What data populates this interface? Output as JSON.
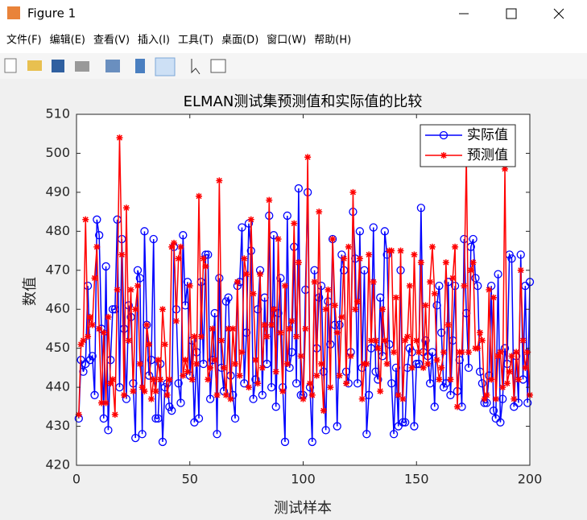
{
  "window": {
    "title": "Figure 1",
    "menu": [
      "文件(F)",
      "编辑(E)",
      "查看(V)",
      "插入(I)",
      "工具(T)",
      "桌面(D)",
      "窗口(W)",
      "帮助(H)"
    ]
  },
  "chart_data": {
    "type": "line",
    "title": "ELMAN测试集预测值和实际值的比较",
    "xlabel": "测试样本",
    "ylabel": "数值",
    "x": [
      1,
      2,
      3,
      4,
      5,
      6,
      7,
      8,
      9,
      10,
      11,
      12,
      13,
      14,
      15,
      16,
      17,
      18,
      19,
      20,
      21,
      22,
      23,
      24,
      25,
      26,
      27,
      28,
      29,
      30,
      31,
      32,
      33,
      34,
      35,
      36,
      37,
      38,
      39,
      40,
      41,
      42,
      43,
      44,
      45,
      46,
      47,
      48,
      49,
      50,
      51,
      52,
      53,
      54,
      55,
      56,
      57,
      58,
      59,
      60,
      61,
      62,
      63,
      64,
      65,
      66,
      67,
      68,
      69,
      70,
      71,
      72,
      73,
      74,
      75,
      76,
      77,
      78,
      79,
      80,
      81,
      82,
      83,
      84,
      85,
      86,
      87,
      88,
      89,
      90,
      91,
      92,
      93,
      94,
      95,
      96,
      97,
      98,
      99,
      100,
      101,
      102,
      103,
      104,
      105,
      106,
      107,
      108,
      109,
      110,
      111,
      112,
      113,
      114,
      115,
      116,
      117,
      118,
      119,
      120,
      121,
      122,
      123,
      124,
      125,
      126,
      127,
      128,
      129,
      130,
      131,
      132,
      133,
      134,
      135,
      136,
      137,
      138,
      139,
      140,
      141,
      142,
      143,
      144,
      145,
      146,
      147,
      148,
      149,
      150,
      151,
      152,
      153,
      154,
      155,
      156,
      157,
      158,
      159,
      160,
      161,
      162,
      163,
      164,
      165,
      166,
      167,
      168,
      169,
      170,
      171,
      172,
      173,
      174,
      175,
      176,
      177,
      178,
      179,
      180,
      181,
      182,
      183,
      184,
      185,
      186,
      187,
      188,
      189,
      190,
      191,
      192,
      193,
      194,
      195,
      196,
      197,
      198,
      199,
      200
    ],
    "series": [
      {
        "name": "实际值",
        "color": "#0000ff",
        "marker": "circle",
        "values": [
          432,
          447,
          444,
          446,
          466,
          447,
          448,
          438,
          483,
          479,
          455,
          432,
          471,
          429,
          447,
          460,
          460,
          483,
          440,
          478,
          455,
          437,
          461,
          458,
          441,
          427,
          470,
          468,
          428,
          480,
          456,
          443,
          447,
          478,
          432,
          432,
          446,
          426,
          440,
          441,
          435,
          434,
          476,
          460,
          441,
          436,
          479,
          461,
          467,
          443,
          452,
          431,
          449,
          432,
          467,
          446,
          474,
          474,
          437,
          447,
          459,
          428,
          468,
          445,
          439,
          462,
          463,
          443,
          438,
          432,
          466,
          467,
          481,
          441,
          454,
          482,
          475,
          437,
          442,
          460,
          470,
          438,
          463,
          446,
          484,
          440,
          479,
          435,
          459,
          468,
          440,
          426,
          484,
          445,
          449,
          476,
          441,
          491,
          438,
          438,
          465,
          490,
          440,
          426,
          470,
          450,
          463,
          466,
          444,
          429,
          462,
          451,
          478,
          456,
          430,
          456,
          474,
          470,
          444,
          441,
          449,
          485,
          473,
          441,
          480,
          445,
          470,
          428,
          438,
          450,
          481,
          444,
          442,
          463,
          448,
          480,
          474,
          451,
          441,
          428,
          445,
          430,
          470,
          431,
          431,
          445,
          450,
          449,
          430,
          446,
          446,
          486,
          449,
          452,
          448,
          441,
          449,
          435,
          461,
          466,
          454,
          440,
          441,
          467,
          438,
          452,
          466,
          439,
          447,
          435,
          478,
          459,
          445,
          476,
          478,
          468,
          466,
          444,
          441,
          436,
          436,
          443,
          466,
          434,
          432,
          469,
          431,
          437,
          450,
          446,
          474,
          473,
          435,
          448,
          436,
          474,
          442,
          466,
          436,
          467
        ]
      },
      {
        "name": "预测值",
        "color": "#ff0000",
        "marker": "asterisk",
        "values": [
          433,
          451,
          452,
          483,
          453,
          458,
          456,
          468,
          476,
          455,
          436,
          454,
          436,
          458,
          441,
          442,
          433,
          465,
          504,
          474,
          438,
          486,
          452,
          465,
          439,
          460,
          466,
          446,
          440,
          439,
          456,
          451,
          437,
          442,
          439,
          447,
          442,
          460,
          451,
          438,
          442,
          476,
          477,
          457,
          473,
          476,
          443,
          447,
          444,
          466,
          442,
          453,
          446,
          489,
          453,
          473,
          471,
          442,
          445,
          455,
          447,
          438,
          493,
          452,
          445,
          438,
          455,
          437,
          455,
          446,
          467,
          443,
          449,
          473,
          469,
          440,
          483,
          464,
          447,
          441,
          469,
          445,
          456,
          453,
          488,
          456,
          460,
          444,
          478,
          454,
          439,
          466,
          446,
          455,
          457,
          482,
          453,
          472,
          448,
          437,
          455,
          499,
          441,
          438,
          467,
          443,
          485,
          446,
          434,
          460,
          465,
          440,
          478,
          461,
          454,
          443,
          458,
          473,
          441,
          476,
          448,
          490,
          460,
          462,
          473,
          437,
          446,
          446,
          474,
          452,
          467,
          452,
          450,
          439,
          460,
          452,
          446,
          475,
          475,
          449,
          463,
          438,
          475,
          437,
          452,
          453,
          466,
          445,
          474,
          452,
          449,
          472,
          445,
          461,
          446,
          467,
          476,
          464,
          447,
          442,
          445,
          449,
          472,
          456,
          442,
          468,
          476,
          435,
          449,
          449,
          466,
          499,
          449,
          470,
          472,
          450,
          450,
          454,
          452,
          437,
          438,
          465,
          442,
          463,
          437,
          448,
          449,
          440,
          496,
          441,
          444,
          448,
          437,
          449,
          442,
          470,
          452,
          445,
          449,
          438
        ]
      }
    ],
    "xlim": [
      0,
      200
    ],
    "xticks": [
      0,
      50,
      100,
      150,
      200
    ],
    "ylim": [
      420,
      510
    ],
    "yticks": [
      420,
      430,
      440,
      450,
      460,
      470,
      480,
      490,
      500,
      510
    ],
    "legend": "upper right"
  }
}
